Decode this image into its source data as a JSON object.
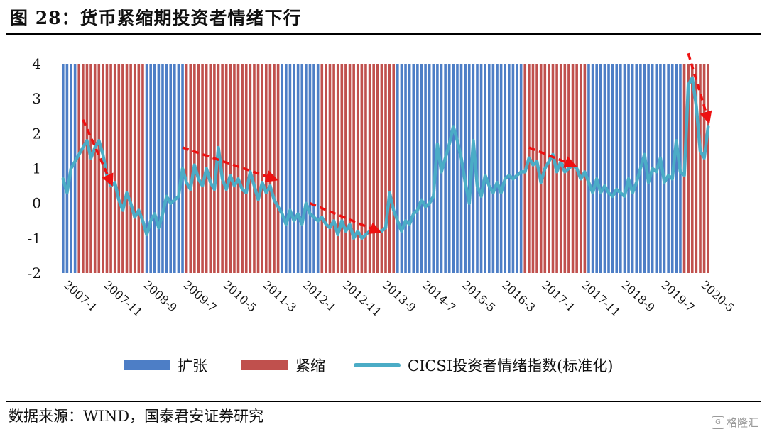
{
  "header": {
    "title": "图 28：货币紧缩期投资者情绪下行"
  },
  "footer": {
    "source": "数据来源：WIND，国泰君安证券研究",
    "watermark": "格隆汇"
  },
  "colors": {
    "expand": "#4d7ec6",
    "tighten": "#c0504d",
    "line": "#4bacc6",
    "arrow": "#ee1111"
  },
  "chart_data": {
    "type": "line",
    "y_ticks": [
      "4",
      "3",
      "2",
      "1",
      "0",
      "-1",
      "-2"
    ],
    "ylim": [
      -2,
      4
    ],
    "x_tick_labels": [
      "2007-1",
      "2007-11",
      "2008-9",
      "2009-7",
      "2010-5",
      "2011-3",
      "2012-1",
      "2012-11",
      "2013-9",
      "2014-7",
      "2015-5",
      "2016-3",
      "2017-1",
      "2017-11",
      "2018-9",
      "2019-7",
      "2020-5"
    ],
    "x_start": "2007-01",
    "x_end": "2020-07",
    "periods": [
      {
        "regime": "expand",
        "start": "2007-01",
        "end": "2007-04"
      },
      {
        "regime": "tighten",
        "start": "2007-05",
        "end": "2008-09"
      },
      {
        "regime": "expand",
        "start": "2008-10",
        "end": "2009-07"
      },
      {
        "regime": "tighten",
        "start": "2009-08",
        "end": "2011-07"
      },
      {
        "regime": "expand",
        "start": "2011-08",
        "end": "2012-05"
      },
      {
        "regime": "tighten",
        "start": "2012-06",
        "end": "2013-12"
      },
      {
        "regime": "expand",
        "start": "2014-01",
        "end": "2016-08"
      },
      {
        "regime": "tighten",
        "start": "2016-09",
        "end": "2017-12"
      },
      {
        "regime": "expand",
        "start": "2018-01",
        "end": "2019-12"
      },
      {
        "regime": "tighten",
        "start": "2020-01",
        "end": "2020-07"
      }
    ],
    "series": [
      {
        "name": "CICSI投资者情绪指数(标准化)",
        "points": [
          [
            "2007-01",
            0.7
          ],
          [
            "2007-02",
            0.3
          ],
          [
            "2007-03",
            1.0
          ],
          [
            "2007-04",
            1.2
          ],
          [
            "2007-05",
            1.4
          ],
          [
            "2007-06",
            1.6
          ],
          [
            "2007-07",
            1.8
          ],
          [
            "2007-08",
            1.3
          ],
          [
            "2007-09",
            1.6
          ],
          [
            "2007-10",
            1.8
          ],
          [
            "2007-11",
            1.4
          ],
          [
            "2007-12",
            0.8
          ],
          [
            "2008-01",
            0.5
          ],
          [
            "2008-02",
            0.6
          ],
          [
            "2008-03",
            0.1
          ],
          [
            "2008-04",
            -0.2
          ],
          [
            "2008-05",
            0.3
          ],
          [
            "2008-06",
            0.0
          ],
          [
            "2008-07",
            -0.4
          ],
          [
            "2008-08",
            -0.2
          ],
          [
            "2008-09",
            -0.5
          ],
          [
            "2008-10",
            -0.9
          ],
          [
            "2008-11",
            -0.5
          ],
          [
            "2008-12",
            -0.3
          ],
          [
            "2009-01",
            -0.7
          ],
          [
            "2009-02",
            -0.3
          ],
          [
            "2009-03",
            0.2
          ],
          [
            "2009-04",
            0.0
          ],
          [
            "2009-05",
            0.1
          ],
          [
            "2009-06",
            0.2
          ],
          [
            "2009-07",
            1.0
          ],
          [
            "2009-08",
            0.6
          ],
          [
            "2009-09",
            0.4
          ],
          [
            "2009-10",
            1.1
          ],
          [
            "2009-11",
            0.7
          ],
          [
            "2009-12",
            0.5
          ],
          [
            "2010-01",
            1.0
          ],
          [
            "2010-02",
            0.6
          ],
          [
            "2010-03",
            0.4
          ],
          [
            "2010-04",
            1.6
          ],
          [
            "2010-05",
            0.7
          ],
          [
            "2010-06",
            0.4
          ],
          [
            "2010-07",
            0.8
          ],
          [
            "2010-08",
            0.5
          ],
          [
            "2010-09",
            0.7
          ],
          [
            "2010-10",
            0.4
          ],
          [
            "2010-11",
            0.3
          ],
          [
            "2010-12",
            0.9
          ],
          [
            "2011-01",
            0.5
          ],
          [
            "2011-02",
            0.1
          ],
          [
            "2011-03",
            0.6
          ],
          [
            "2011-04",
            0.3
          ],
          [
            "2011-05",
            0.5
          ],
          [
            "2011-06",
            0.1
          ],
          [
            "2011-07",
            -0.1
          ],
          [
            "2011-08",
            -0.3
          ],
          [
            "2011-09",
            -0.6
          ],
          [
            "2011-10",
            -0.2
          ],
          [
            "2011-11",
            -0.5
          ],
          [
            "2011-12",
            -0.3
          ],
          [
            "2012-01",
            -0.6
          ],
          [
            "2012-02",
            0.0
          ],
          [
            "2012-03",
            -0.3
          ],
          [
            "2012-04",
            -0.4
          ],
          [
            "2012-05",
            -0.5
          ],
          [
            "2012-06",
            -0.4
          ],
          [
            "2012-07",
            -0.6
          ],
          [
            "2012-08",
            -0.7
          ],
          [
            "2012-09",
            -0.5
          ],
          [
            "2012-10",
            -0.9
          ],
          [
            "2012-11",
            -0.5
          ],
          [
            "2012-12",
            -0.8
          ],
          [
            "2013-01",
            -0.6
          ],
          [
            "2013-02",
            -1.0
          ],
          [
            "2013-03",
            -0.8
          ],
          [
            "2013-04",
            -1.0
          ],
          [
            "2013-05",
            -0.9
          ],
          [
            "2013-06",
            -0.8
          ],
          [
            "2013-07",
            -0.8
          ],
          [
            "2013-08",
            -0.8
          ],
          [
            "2013-09",
            -0.8
          ],
          [
            "2013-10",
            -0.7
          ],
          [
            "2013-11",
            0.3
          ],
          [
            "2013-12",
            -0.2
          ],
          [
            "2014-01",
            -0.5
          ],
          [
            "2014-02",
            -0.8
          ],
          [
            "2014-03",
            -0.5
          ],
          [
            "2014-04",
            -0.6
          ],
          [
            "2014-05",
            -0.3
          ],
          [
            "2014-06",
            -0.2
          ],
          [
            "2014-07",
            0.1
          ],
          [
            "2014-08",
            -0.1
          ],
          [
            "2014-09",
            0.0
          ],
          [
            "2014-10",
            0.2
          ],
          [
            "2014-11",
            1.7
          ],
          [
            "2014-12",
            0.9
          ],
          [
            "2015-01",
            1.3
          ],
          [
            "2015-02",
            1.7
          ],
          [
            "2015-03",
            2.2
          ],
          [
            "2015-04",
            1.8
          ],
          [
            "2015-05",
            1.3
          ],
          [
            "2015-06",
            0.6
          ],
          [
            "2015-07",
            0.0
          ],
          [
            "2015-08",
            1.8
          ],
          [
            "2015-09",
            0.5
          ],
          [
            "2015-10",
            0.2
          ],
          [
            "2015-11",
            0.8
          ],
          [
            "2015-12",
            0.5
          ],
          [
            "2016-01",
            0.3
          ],
          [
            "2016-02",
            0.6
          ],
          [
            "2016-03",
            0.3
          ],
          [
            "2016-04",
            0.7
          ],
          [
            "2016-05",
            0.8
          ],
          [
            "2016-06",
            0.7
          ],
          [
            "2016-07",
            0.8
          ],
          [
            "2016-08",
            0.9
          ],
          [
            "2016-09",
            0.9
          ],
          [
            "2016-10",
            1.3
          ],
          [
            "2016-11",
            1.1
          ],
          [
            "2016-12",
            1.2
          ],
          [
            "2017-01",
            0.6
          ],
          [
            "2017-02",
            1.0
          ],
          [
            "2017-03",
            1.2
          ],
          [
            "2017-04",
            1.4
          ],
          [
            "2017-05",
            0.9
          ],
          [
            "2017-06",
            1.2
          ],
          [
            "2017-07",
            0.9
          ],
          [
            "2017-08",
            1.0
          ],
          [
            "2017-09",
            1.1
          ],
          [
            "2017-10",
            1.0
          ],
          [
            "2017-11",
            0.7
          ],
          [
            "2017-12",
            0.9
          ],
          [
            "2018-01",
            0.6
          ],
          [
            "2018-02",
            0.3
          ],
          [
            "2018-03",
            0.7
          ],
          [
            "2018-04",
            0.3
          ],
          [
            "2018-05",
            0.5
          ],
          [
            "2018-06",
            0.3
          ],
          [
            "2018-07",
            0.2
          ],
          [
            "2018-08",
            0.4
          ],
          [
            "2018-09",
            0.3
          ],
          [
            "2018-10",
            0.2
          ],
          [
            "2018-11",
            0.7
          ],
          [
            "2018-12",
            0.3
          ],
          [
            "2019-01",
            0.6
          ],
          [
            "2019-02",
            1.0
          ],
          [
            "2019-03",
            1.4
          ],
          [
            "2019-04",
            0.6
          ],
          [
            "2019-05",
            1.0
          ],
          [
            "2019-06",
            0.9
          ],
          [
            "2019-07",
            1.3
          ],
          [
            "2019-08",
            0.6
          ],
          [
            "2019-09",
            0.8
          ],
          [
            "2019-10",
            0.7
          ],
          [
            "2019-11",
            1.8
          ],
          [
            "2019-12",
            0.9
          ],
          [
            "2020-01",
            0.8
          ],
          [
            "2020-02",
            3.4
          ],
          [
            "2020-03",
            3.6
          ],
          [
            "2020-04",
            2.8
          ],
          [
            "2020-05",
            1.5
          ],
          [
            "2020-06",
            1.3
          ],
          [
            "2020-07",
            2.2
          ]
        ]
      }
    ],
    "annotations": [
      {
        "type": "arrow",
        "from": [
          "2007-06",
          2.4
        ],
        "to": [
          "2008-01",
          0.6
        ]
      },
      {
        "type": "arrow",
        "from": [
          "2009-07",
          1.6
        ],
        "to": [
          "2011-06",
          0.7
        ]
      },
      {
        "type": "arrow",
        "from": [
          "2012-03",
          0.0
        ],
        "to": [
          "2013-08",
          -0.8
        ]
      },
      {
        "type": "arrow",
        "from": [
          "2016-10",
          1.6
        ],
        "to": [
          "2017-09",
          1.1
        ]
      },
      {
        "type": "arrow",
        "from": [
          "2020-02",
          4.3
        ],
        "to": [
          "2020-07",
          2.4
        ]
      }
    ],
    "legend": {
      "position": "bottom",
      "expand": "扩张",
      "tighten": "紧缩",
      "line": "CICSI投资者情绪指数(标准化)"
    },
    "grid": false
  }
}
